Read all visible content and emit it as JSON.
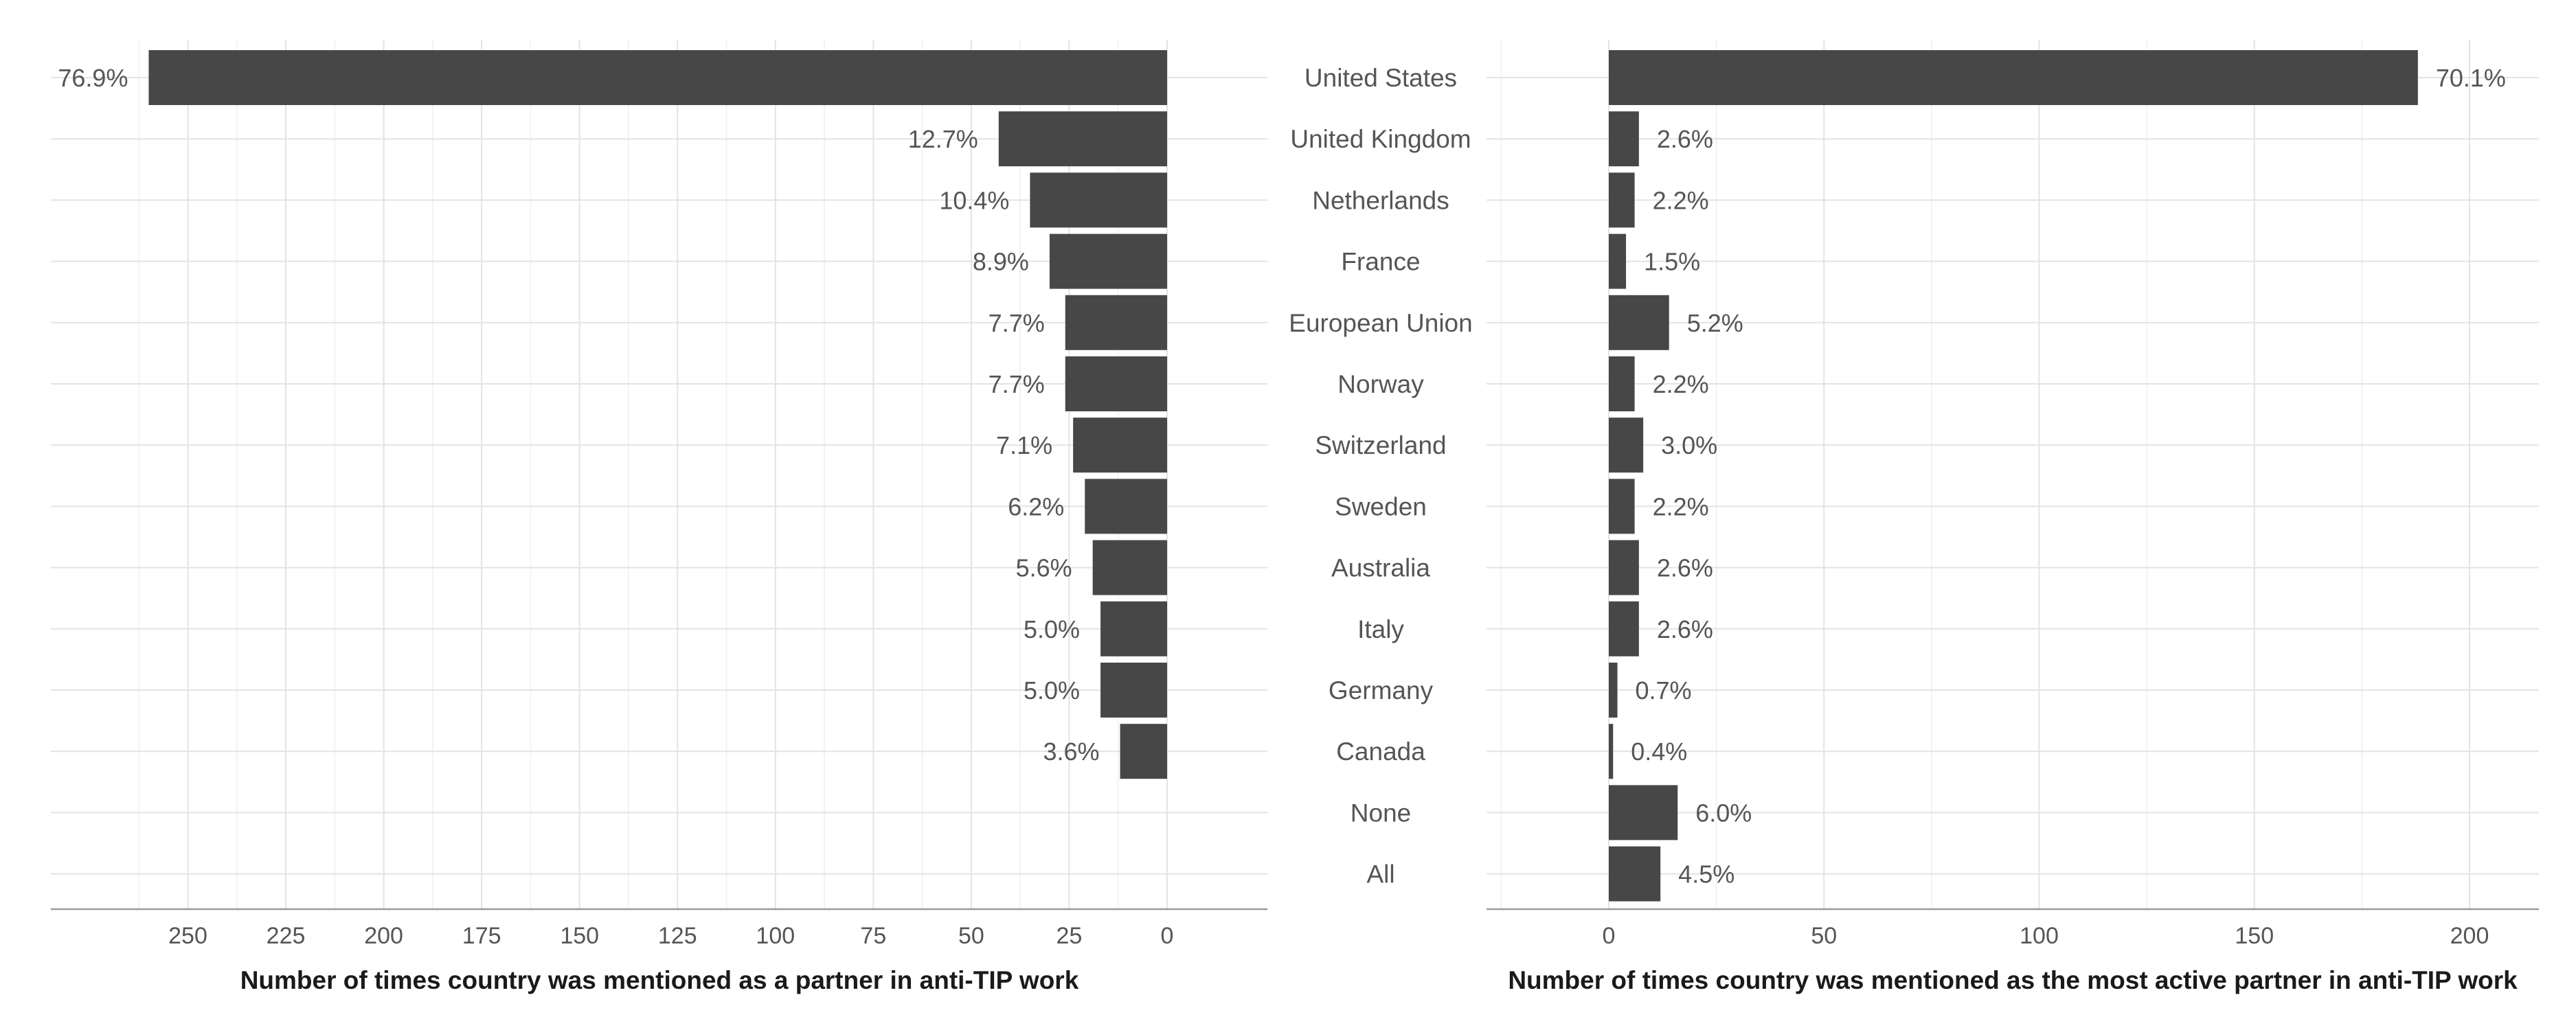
{
  "chart_data": [
    {
      "type": "bar",
      "orientation": "horizontal",
      "direction": "reversed",
      "xlabel": "Number of times country was mentioned as a partner in anti-TIP work",
      "xlim": [
        0,
        260
      ],
      "xticks": [
        250,
        225,
        200,
        175,
        150,
        125,
        100,
        75,
        50,
        25,
        0
      ],
      "categories": [
        "United States",
        "United Kingdom",
        "Netherlands",
        "France",
        "European Union",
        "Norway",
        "Switzerland",
        "Sweden",
        "Australia",
        "Italy",
        "Germany",
        "Canada",
        "None",
        "All"
      ],
      "values": [
        260,
        43,
        35,
        30,
        26,
        26,
        24,
        21,
        19,
        17,
        17,
        12,
        null,
        null
      ],
      "data_labels": [
        "76.9%",
        "12.7%",
        "10.4%",
        "8.9%",
        "7.7%",
        "7.7%",
        "7.1%",
        "6.2%",
        "5.6%",
        "5.0%",
        "5.0%",
        "3.6%",
        "",
        ""
      ],
      "grid": true
    },
    {
      "type": "bar",
      "orientation": "horizontal",
      "xlabel": "Number of times country was mentioned as the most active partner in anti-TIP work",
      "xlim": [
        0,
        200
      ],
      "xticks": [
        0,
        50,
        100,
        150,
        200
      ],
      "categories": [
        "United States",
        "United Kingdom",
        "Netherlands",
        "France",
        "European Union",
        "Norway",
        "Switzerland",
        "Sweden",
        "Australia",
        "Italy",
        "Germany",
        "Canada",
        "None",
        "All"
      ],
      "values": [
        188,
        7,
        6,
        4,
        14,
        6,
        8,
        6,
        7,
        7,
        2,
        1,
        16,
        12
      ],
      "data_labels": [
        "70.1%",
        "2.6%",
        "2.2%",
        "1.5%",
        "5.2%",
        "2.2%",
        "3.0%",
        "2.2%",
        "2.6%",
        "2.6%",
        "0.7%",
        "0.4%",
        "6.0%",
        "4.5%"
      ],
      "grid": true
    }
  ]
}
